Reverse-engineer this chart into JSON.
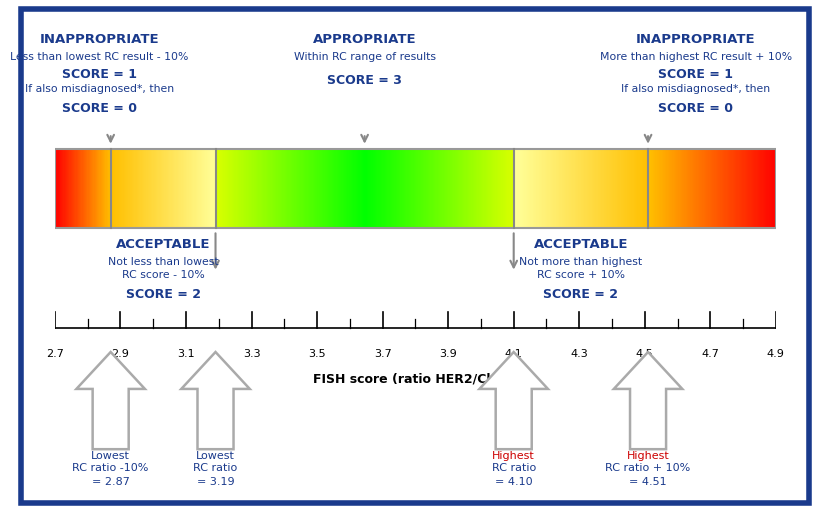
{
  "xmin": 2.7,
  "xmax": 4.9,
  "boundaries": {
    "lowest_rc_minus10": 2.87,
    "lowest_rc": 3.19,
    "highest_rc": 4.1,
    "highest_rc_plus10": 4.51
  },
  "tick_labels": [
    "2.7",
    "2.9",
    "3.1",
    "3.3",
    "3.5",
    "3.7",
    "3.9",
    "4.1",
    "4.3",
    "4.5",
    "4.7",
    "4.9"
  ],
  "tick_positions": [
    2.7,
    2.9,
    3.1,
    3.3,
    3.5,
    3.7,
    3.9,
    4.1,
    4.3,
    4.5,
    4.7,
    4.9
  ],
  "xlabel": "FISH score (ratio HER2/Ch17)",
  "background_color": "#ffffff",
  "border_color": "#1a3a8c",
  "text_color_dark": "#1a3a8c",
  "text_color_red": "#cc0000",
  "arrow_color": "#888888",
  "left_inapp_label": [
    "INAPPROPRIATE",
    "Less than lowest RC result - 10%",
    "SCORE = 1",
    "If also misdiagnosed*, then",
    "SCORE = 0"
  ],
  "left_inapp_bold": [
    true,
    false,
    true,
    false,
    true
  ],
  "center_label": [
    "APPROPRIATE",
    "Within RC range of results",
    "SCORE = 3"
  ],
  "center_bold": [
    true,
    false,
    true
  ],
  "right_inapp_label": [
    "INAPPROPRIATE",
    "More than highest RC result + 10%",
    "SCORE = 1",
    "If also misdiagnosed*, then",
    "SCORE = 0"
  ],
  "right_inapp_bold": [
    true,
    false,
    true,
    false,
    true
  ],
  "left_acc_label": [
    "ACCEPTABLE",
    "Not less than lowest",
    "RC score - 10%",
    "SCORE = 2"
  ],
  "left_acc_bold": [
    true,
    false,
    false,
    true
  ],
  "right_acc_label": [
    "ACCEPTABLE",
    "Not more than highest",
    "RC score + 10%",
    "SCORE = 2"
  ],
  "right_acc_bold": [
    true,
    false,
    false,
    true
  ],
  "arrow_labels_left1": [
    "Lowest",
    "RC ratio -10%",
    "= 2.87"
  ],
  "arrow_labels_left2": [
    "Lowest",
    "RC ratio",
    "= 3.19"
  ],
  "arrow_labels_right1_color": "red",
  "arrow_labels_right1": [
    "Highest",
    "RC ratio",
    "= 4.10"
  ],
  "arrow_labels_right2_color": "red",
  "arrow_labels_right2": [
    "Highest",
    "RC ratio + 10%",
    "= 4.51"
  ]
}
